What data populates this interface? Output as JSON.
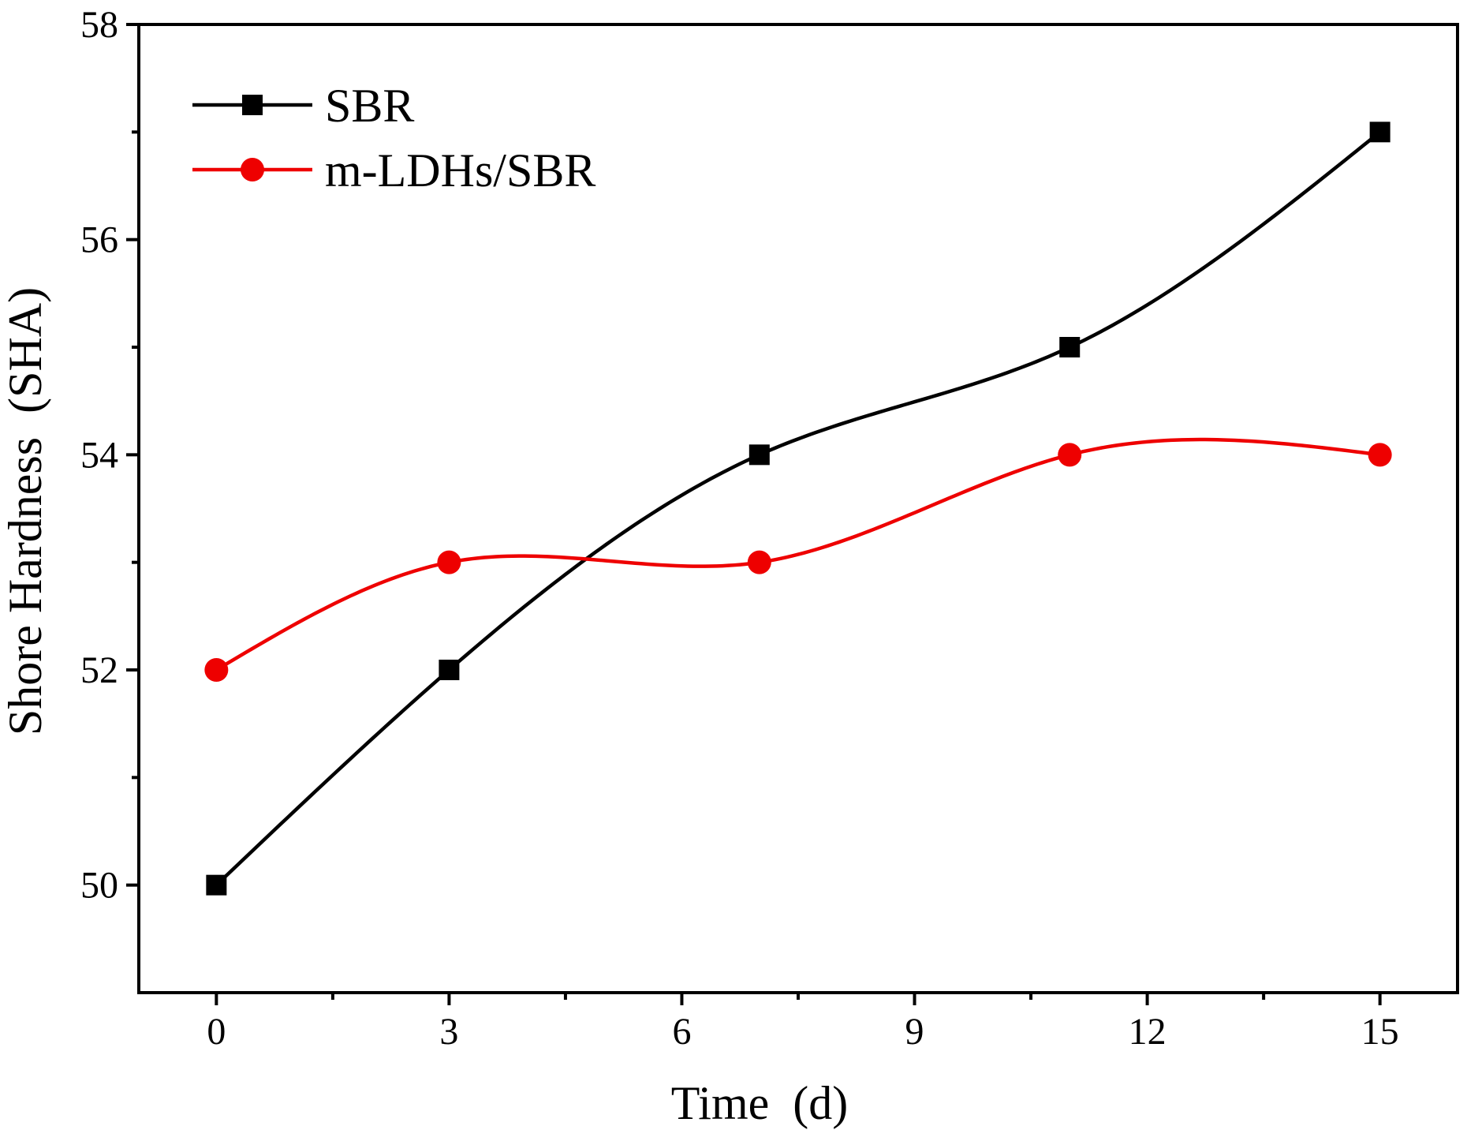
{
  "chart_data": {
    "type": "line",
    "title": "",
    "xlabel": "Time (d)",
    "ylabel": "Shore Hardness (SHA)",
    "xlim": [
      -1,
      16
    ],
    "ylim": [
      49,
      58
    ],
    "xticks": [
      0,
      3,
      6,
      9,
      12,
      15
    ],
    "xtick_labels": [
      "0",
      "3",
      "6",
      "9",
      "12",
      "15"
    ],
    "x_minor_ticks": [
      1.5,
      4.5,
      7.5,
      10.5,
      13.5
    ],
    "yticks": [
      50,
      52,
      54,
      56,
      58
    ],
    "ytick_labels": [
      "50",
      "52",
      "54",
      "56",
      "58"
    ],
    "y_minor_ticks": [
      51,
      53,
      55,
      57
    ],
    "grid": false,
    "legend_position": "top-left",
    "series": [
      {
        "name": "SBR",
        "color": "#000000",
        "marker": "square",
        "x": [
          0,
          3,
          7,
          11,
          15
        ],
        "y": [
          50,
          52,
          54,
          55,
          57
        ]
      },
      {
        "name": "m-LDHs/SBR",
        "color": "#ee0000",
        "marker": "circle",
        "x": [
          0,
          3,
          7,
          11,
          15
        ],
        "y": [
          52,
          53,
          53,
          54,
          54
        ]
      }
    ]
  }
}
